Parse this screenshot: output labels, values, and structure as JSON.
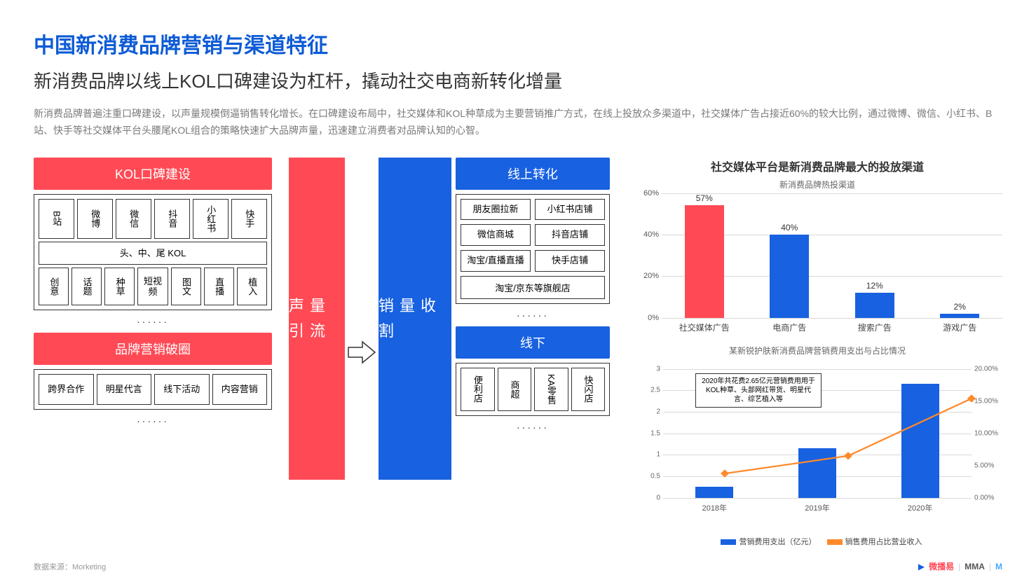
{
  "title": "中国新消费品牌营销与渠道特征",
  "subtitle": "新消费品牌以线上KOL口碑建设为杠杆，撬动社交电商新转化增量",
  "desc": "新消费品牌普遍注重口碑建设，以声量规模倒逼销售转化增长。在口碑建设布局中，社交媒体和KOL种草成为主要营销推广方式，在线上投放众多渠道中，社交媒体广告占接近60%的较大比例，通过微博、微信、小红书、B站、快手等社交媒体平台头腰尾KOL组合的策略快速扩大品牌声量，迅速建立消费者对品牌认知的心智。",
  "kol_header": "KOL口碑建设",
  "kol_platforms": [
    "B站",
    "微博",
    "微信",
    "抖音",
    "小红书",
    "快手"
  ],
  "kol_tier": "头、中、尾 KOL",
  "kol_formats": [
    "创意",
    "话题",
    "种草",
    "短视频",
    "图文",
    "直播",
    "植入"
  ],
  "dots": "······",
  "brand_header": "品牌营销破圈",
  "brand_items": [
    "跨界合作",
    "明星代言",
    "线下活动",
    "内容营销"
  ],
  "pillar_left": "声量引流",
  "pillar_right": "销量收割",
  "online_header": "线上转化",
  "online_rows": [
    [
      "朋友圈拉新",
      "小红书店铺"
    ],
    [
      "微信商城",
      "抖音店铺"
    ],
    [
      "淘宝/直播直播",
      "快手店铺"
    ]
  ],
  "online_single": "淘宝/京东等旗舰店",
  "offline_header": "线下",
  "offline_items": [
    "便利店",
    "商超",
    "KA零售",
    "快闪店"
  ],
  "chart1": {
    "title": "社交媒体平台是新消费品牌最大的投放渠道",
    "subtitle": "新消费品牌热投渠道",
    "ylabels": [
      "60%",
      "40%",
      "20%",
      "0%"
    ],
    "ymax": 60,
    "categories": [
      "社交媒体广告",
      "电商广告",
      "搜索广告",
      "游戏广告"
    ],
    "values": [
      57,
      40,
      12,
      2
    ],
    "value_labels": [
      "57%",
      "40%",
      "12%",
      "2%"
    ],
    "colors": [
      "#ff4a55",
      "#1861e0",
      "#1861e0",
      "#1861e0"
    ]
  },
  "chart2": {
    "subtitle": "某新锐护肤新消费品牌营销费用支出与占比情况",
    "left_labels": [
      "3",
      "2.5",
      "2",
      "1.5",
      "1",
      "0.5",
      "0"
    ],
    "left_max": 3,
    "right_labels": [
      "20.00%",
      "15.00%",
      "10.00%",
      "5.00%",
      "0.00%"
    ],
    "right_max": 20,
    "categories": [
      "2018年",
      "2019年",
      "2020年"
    ],
    "bars": [
      0.25,
      1.15,
      2.65
    ],
    "bar_color": "#1861e0",
    "line": [
      5.8,
      8.2,
      16.0
    ],
    "line_color": "#ff8a2b",
    "annot": "2020年共花费2.65亿元营销费用用于KOL种草、头部网红带货、明星代言、综艺植入等",
    "legend_bar": "营销费用支出（亿元）",
    "legend_line": "销售费用占比营业收入"
  },
  "footer": "数据来源：Morketing",
  "logos": {
    "a": "微播易",
    "b": "MMA",
    "c": "M"
  }
}
